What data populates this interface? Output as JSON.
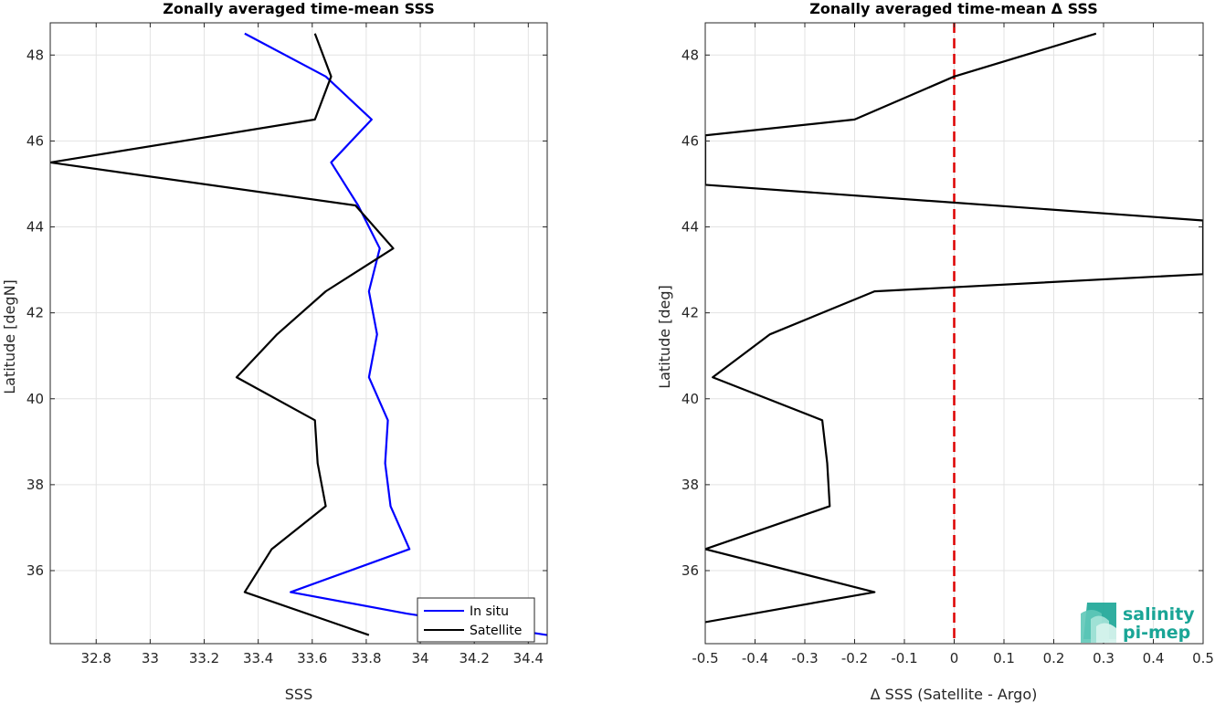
{
  "chart_data": [
    {
      "type": "line",
      "title": "Zonally averaged time-mean SSS",
      "xlabel": "SSS",
      "ylabel": "Latitude [degN]",
      "xlim": [
        32.63,
        34.47
      ],
      "ylim": [
        34.3,
        48.75
      ],
      "xticks": [
        32.8,
        33,
        33.2,
        33.4,
        33.6,
        33.8,
        34,
        34.2,
        34.4
      ],
      "xtick_labels": [
        "32.8",
        "33",
        "33.2",
        "33.4",
        "33.6",
        "33.8",
        "34",
        "34.2",
        "34.4"
      ],
      "yticks": [
        36,
        38,
        40,
        42,
        44,
        46,
        48
      ],
      "ytick_labels": [
        "36",
        "38",
        "40",
        "42",
        "44",
        "46",
        "48"
      ],
      "grid": true,
      "legend_position": "bottom-right",
      "series": [
        {
          "name": "In situ",
          "color": "#0000ff",
          "x": [
            34.47,
            33.95,
            33.52,
            33.96,
            33.89,
            33.87,
            33.88,
            33.81,
            33.84,
            33.81,
            33.85,
            33.77,
            33.67,
            33.82,
            33.65,
            33.35
          ],
          "y": [
            34.5,
            35.0,
            35.5,
            36.5,
            37.5,
            38.5,
            39.5,
            40.5,
            41.5,
            42.5,
            43.5,
            44.5,
            45.5,
            46.5,
            47.5,
            48.5
          ]
        },
        {
          "name": "Satellite",
          "color": "#000000",
          "x": [
            33.81,
            33.35,
            33.45,
            33.65,
            33.62,
            33.61,
            33.32,
            33.47,
            33.65,
            33.9,
            33.76,
            32.63,
            33.61,
            33.67,
            33.61
          ],
          "y": [
            34.5,
            35.5,
            36.5,
            37.5,
            38.5,
            39.5,
            40.5,
            41.5,
            42.5,
            43.5,
            44.5,
            45.5,
            46.5,
            47.5,
            48.5
          ]
        }
      ]
    },
    {
      "type": "line",
      "title": "Zonally averaged time-mean Δ SSS",
      "xlabel": "Δ SSS (Satellite - Argo)",
      "ylabel": "Latitude [deg]",
      "xlim": [
        -0.5,
        0.5
      ],
      "ylim": [
        34.3,
        48.75
      ],
      "xticks": [
        -0.5,
        -0.4,
        -0.3,
        -0.2,
        -0.1,
        0,
        0.1,
        0.2,
        0.3,
        0.4,
        0.5
      ],
      "xtick_labels": [
        "-0.5",
        "-0.4",
        "-0.3",
        "-0.2",
        "-0.1",
        "0",
        "0.1",
        "0.2",
        "0.3",
        "0.4",
        "0.5"
      ],
      "yticks": [
        36,
        38,
        40,
        42,
        44,
        46,
        48
      ],
      "ytick_labels": [
        "36",
        "38",
        "40",
        "42",
        "44",
        "46",
        "48"
      ],
      "grid": true,
      "reference_line": {
        "x": 0,
        "color": "#dd0000",
        "style": "dashed"
      },
      "series": [
        {
          "name": "",
          "color": "#000000",
          "x": [
            -0.5,
            -0.16,
            -0.5,
            -0.25,
            -0.255,
            -0.265,
            -0.485,
            -0.37,
            -0.16,
            0.5,
            0.5,
            -0.5,
            -0.5,
            -0.2,
            0.0,
            0.285
          ],
          "y": [
            34.8,
            35.5,
            36.5,
            37.5,
            38.5,
            39.5,
            40.5,
            41.5,
            42.5,
            42.9,
            44.15,
            44.98,
            46.13,
            46.5,
            47.5,
            48.5
          ]
        }
      ]
    }
  ],
  "logo": {
    "line1": "salinity",
    "line2": "pi-mep",
    "color": "#1aa596"
  }
}
